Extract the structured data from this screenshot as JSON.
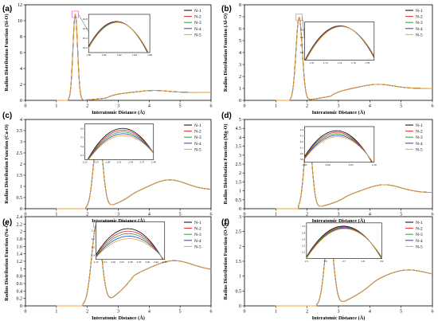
{
  "figure": {
    "series_colors": [
      "#000000",
      "#e8212b",
      "#2e9e2e",
      "#1f3fd1",
      "#f0a030"
    ],
    "highlight_color": "#e778e0"
  },
  "chart_data": [
    {
      "type": "line",
      "panel_label": "(a)",
      "xlabel": "Interatomic Distance (Å)",
      "ylabel": "Radius Distribution Function (Si-O)",
      "xlim": [
        0,
        6
      ],
      "ylim": [
        0,
        12
      ],
      "xticks": [
        0,
        1,
        2,
        3,
        4,
        5,
        6
      ],
      "yticks": [
        0,
        2,
        4,
        6,
        8,
        10,
        12
      ],
      "series": [
        {
          "name": "N-1"
        },
        {
          "name": "N-2"
        },
        {
          "name": "N-3"
        },
        {
          "name": "N-4"
        },
        {
          "name": "N-5"
        }
      ],
      "profile": {
        "peak_r": 1.61,
        "peak_g": 10.8,
        "width": 0.075,
        "onset": 1.38,
        "hump_r": 4.15,
        "hump_g": 1.25,
        "hump_w": 0.45,
        "dip_r": 2.6,
        "dip_g": 0.28,
        "tail": 1.0
      },
      "inset": {
        "x": [
          1.58,
          1.66
        ],
        "y": [
          10.1,
          10.9
        ],
        "xticks": [
          "1.58",
          "1.60",
          "1.62",
          "1.64",
          "1.66"
        ],
        "yticks": [
          "10.2",
          "10.4",
          "10.6",
          "10.8"
        ],
        "peak": 1.617,
        "top": 10.75,
        "spread": 0.02
      }
    },
    {
      "type": "line",
      "panel_label": "(b)",
      "xlabel": "Interatomic Distance (Å)",
      "ylabel": "Radius Distribution Function (Al-O)",
      "xlim": [
        0,
        6
      ],
      "ylim": [
        0,
        8
      ],
      "xticks": [
        0,
        1,
        2,
        3,
        4,
        5,
        6
      ],
      "yticks": [
        0,
        1,
        2,
        3,
        4,
        5,
        6,
        7,
        8
      ],
      "series": [
        {
          "name": "N-1"
        },
        {
          "name": "N-2"
        },
        {
          "name": "N-3"
        },
        {
          "name": "N-4"
        },
        {
          "name": "N-5"
        }
      ],
      "profile": {
        "peak_r": 1.745,
        "peak_g": 6.95,
        "width": 0.1,
        "onset": 1.45,
        "hump_r": 4.25,
        "hump_g": 1.35,
        "hump_w": 0.5,
        "dip_r": 2.75,
        "dip_g": 0.35,
        "tail": 1.0
      },
      "inset": {
        "x": [
          1.69,
          1.79
        ],
        "y": [
          6.5,
          7.0
        ],
        "xticks": [
          "1.70",
          "1.72",
          "1.74",
          "1.76",
          "1.78"
        ],
        "yticks": [
          "6.6",
          "6.7",
          "6.8",
          "6.9"
        ],
        "peak": 1.742,
        "top": 6.95,
        "spread": 0.01
      }
    },
    {
      "type": "line",
      "panel_label": "(c)",
      "xlabel": "Interatomic Distance (Å)",
      "ylabel": "Radius Distribution Function (Ca-O)",
      "xlim": [
        0,
        6
      ],
      "ylim": [
        0,
        4
      ],
      "xticks": [
        0,
        1,
        2,
        3,
        4,
        5,
        6
      ],
      "yticks": [
        0,
        0.5,
        1,
        1.5,
        2,
        2.5,
        3,
        3.5,
        4
      ],
      "series": [
        {
          "name": "N-1"
        },
        {
          "name": "N-2"
        },
        {
          "name": "N-3"
        },
        {
          "name": "N-4"
        },
        {
          "name": "N-5"
        }
      ],
      "profile": {
        "peak_r": 2.35,
        "peak_g": 3.6,
        "width": 0.14,
        "onset": 1.95,
        "hump_r": 4.65,
        "hump_g": 1.3,
        "hump_w": 0.55,
        "dip_r": 3.45,
        "dip_g": 0.6,
        "tail": 0.85
      },
      "inset": {
        "x": [
          2.22,
          2.4
        ],
        "y": [
          3.25,
          3.65
        ],
        "xticks": [
          "2.22",
          "2.25",
          "2.28",
          "2.31",
          "2.34",
          "2.37",
          "2.40"
        ],
        "yticks": [
          "3.3",
          "3.4",
          "3.5",
          "3.6"
        ],
        "peak": 2.32,
        "top": 3.6,
        "spread": 0.08
      }
    },
    {
      "type": "line",
      "panel_label": "(d)",
      "xlabel": "Interatomic Distance (Å)",
      "ylabel": "Radius Distribution Function (Mg-O)",
      "xlim": [
        0,
        6
      ],
      "ylim": [
        0,
        5
      ],
      "xticks": [
        0,
        1,
        2,
        3,
        4,
        5,
        6
      ],
      "yticks": [
        0,
        0.5,
        1,
        1.5,
        2,
        2.5,
        3,
        3.5,
        4,
        4.5,
        5
      ],
      "series": [
        {
          "name": "N-1"
        },
        {
          "name": "N-2"
        },
        {
          "name": "N-3"
        },
        {
          "name": "N-4"
        },
        {
          "name": "N-5"
        }
      ],
      "profile": {
        "peak_r": 2.03,
        "peak_g": 4.35,
        "width": 0.12,
        "onset": 1.72,
        "hump_r": 4.45,
        "hump_g": 1.35,
        "hump_w": 0.55,
        "dip_r": 3.1,
        "dip_g": 0.5,
        "tail": 0.9
      },
      "inset": {
        "x": [
          1.95,
          2.1
        ],
        "y": [
          3.85,
          4.45
        ],
        "xticks": [
          "1.95",
          "2.00",
          "2.05",
          "2.10"
        ],
        "yticks": [
          "3.9",
          "4.0",
          "4.1",
          "4.2",
          "4.3",
          "4.4"
        ],
        "peak": 2.02,
        "top": 4.38,
        "spread": 0.1
      }
    },
    {
      "type": "line",
      "panel_label": "(e)",
      "xlabel": "Interatomic Distance (Å)",
      "ylabel": "Radius Distribution Function (Na-O)",
      "xlim": [
        0,
        6
      ],
      "ylim": [
        0,
        2.4
      ],
      "xticks": [
        0,
        1,
        2,
        3,
        4,
        5,
        6
      ],
      "yticks": [
        0,
        0.2,
        0.4,
        0.6,
        0.8,
        1,
        1.2,
        1.4,
        1.6,
        1.8,
        2,
        2.2,
        2.4
      ],
      "series": [
        {
          "name": "N-1"
        },
        {
          "name": "N-2"
        },
        {
          "name": "N-3"
        },
        {
          "name": "N-4"
        },
        {
          "name": "N-5"
        }
      ],
      "profile": {
        "peak_r": 2.3,
        "peak_g": 2.2,
        "width": 0.16,
        "onset": 1.85,
        "hump_r": 4.8,
        "hump_g": 1.22,
        "hump_w": 0.6,
        "dip_r": 3.5,
        "dip_g": 0.78,
        "tail": 0.95
      },
      "inset": {
        "x": [
          2.1,
          2.5
        ],
        "y": [
          1.85,
          2.3
        ],
        "xticks": [
          "2.10",
          "2.15",
          "2.20",
          "2.25",
          "2.30",
          "2.35",
          "2.40",
          "2.45",
          "2.50"
        ],
        "yticks": [
          "1.9",
          "2.0",
          "2.1",
          "2.2"
        ],
        "peak": 2.29,
        "top": 2.22,
        "spread": 0.12
      }
    },
    {
      "type": "line",
      "panel_label": "(f)",
      "xlabel": "Interatomic Distance (Å)",
      "ylabel": "Radius Distribution Function (O-O)",
      "xlim": [
        0,
        6
      ],
      "ylim": [
        0,
        3
      ],
      "xticks": [
        0,
        1,
        2,
        3,
        4,
        5,
        6
      ],
      "yticks": [
        0,
        0.5,
        1,
        1.5,
        2,
        2.5,
        3
      ],
      "series": [
        {
          "name": "N-1"
        },
        {
          "name": "N-2"
        },
        {
          "name": "N-3"
        },
        {
          "name": "N-4"
        },
        {
          "name": "N-5"
        }
      ],
      "profile": {
        "peak_r": 2.7,
        "peak_g": 2.5,
        "width": 0.14,
        "onset": 2.3,
        "hump_r": 5.2,
        "hump_g": 1.22,
        "hump_w": 0.55,
        "dip_r": 4.05,
        "dip_g": 0.7,
        "tail": 1.0
      },
      "inset": {
        "x": [
          2.5,
          2.9
        ],
        "y": [
          2.0,
          2.55
        ],
        "xticks": [
          "2.5",
          "2.6",
          "2.7",
          "2.8",
          "2.9"
        ],
        "yticks": [
          "2.1",
          "2.2",
          "2.3",
          "2.4",
          "2.5"
        ],
        "peak": 2.7,
        "top": 2.5,
        "spread": 0.04
      }
    }
  ]
}
